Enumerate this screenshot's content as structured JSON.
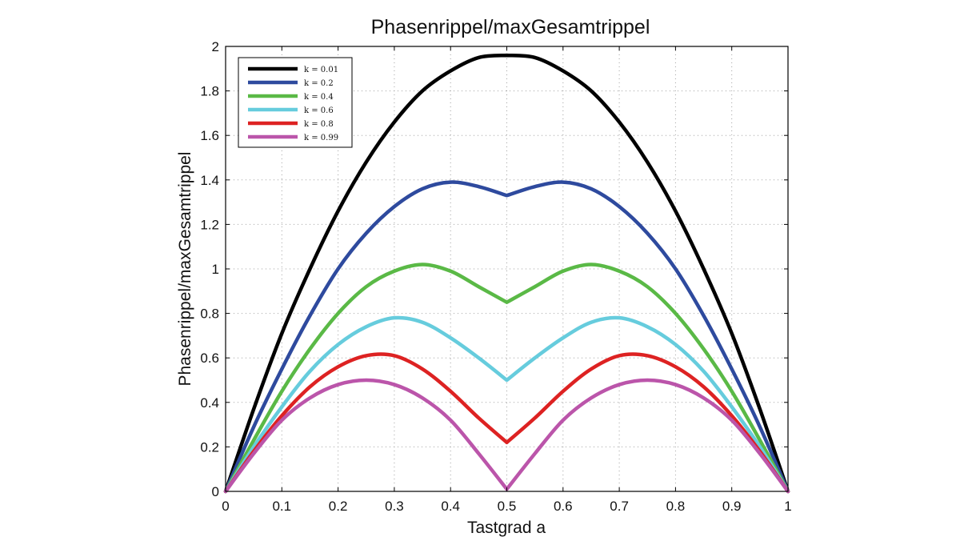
{
  "chart_data": {
    "type": "line",
    "title": "Phasenrippel/maxGesamtrippel",
    "xlabel": "Tastgrad a",
    "ylabel": "Phasenrippel/maxGesamtrippel",
    "xlim": [
      0,
      1
    ],
    "ylim": [
      0,
      2
    ],
    "xticks": [
      "0",
      "0.1",
      "0.2",
      "0.3",
      "0.4",
      "0.5",
      "0.6",
      "0.7",
      "0.8",
      "0.9",
      "1"
    ],
    "yticks": [
      "0",
      "0.2",
      "0.4",
      "0.6",
      "0.8",
      "1",
      "1.2",
      "1.4",
      "1.6",
      "1.8",
      "2"
    ],
    "grid": true,
    "legend_position": "top-left",
    "x": [
      0,
      0.05,
      0.1,
      0.15,
      0.2,
      0.25,
      0.3,
      0.35,
      0.4,
      0.45,
      0.5,
      0.55,
      0.6,
      0.65,
      0.7,
      0.75,
      0.8,
      0.85,
      0.9,
      0.95,
      1
    ],
    "series": [
      {
        "name": "k = 0.01",
        "color": "#000000",
        "values": [
          0,
          0.37,
          0.71,
          1.0,
          1.26,
          1.48,
          1.66,
          1.8,
          1.89,
          1.95,
          1.96,
          1.95,
          1.89,
          1.8,
          1.66,
          1.48,
          1.26,
          1.0,
          0.71,
          0.37,
          0
        ]
      },
      {
        "name": "k = 0.2",
        "color": "#2e4a9e",
        "values": [
          0,
          0.29,
          0.55,
          0.79,
          1.0,
          1.16,
          1.28,
          1.36,
          1.39,
          1.37,
          1.33,
          1.37,
          1.39,
          1.36,
          1.28,
          1.16,
          1.0,
          0.79,
          0.55,
          0.29,
          0
        ]
      },
      {
        "name": "k = 0.4",
        "color": "#5ab946",
        "values": [
          0,
          0.23,
          0.45,
          0.64,
          0.8,
          0.92,
          0.99,
          1.02,
          0.99,
          0.92,
          0.85,
          0.92,
          0.99,
          1.02,
          0.99,
          0.92,
          0.8,
          0.64,
          0.45,
          0.23,
          0
        ]
      },
      {
        "name": "k = 0.6",
        "color": "#66ccdd",
        "values": [
          0,
          0.2,
          0.38,
          0.54,
          0.66,
          0.74,
          0.78,
          0.76,
          0.69,
          0.6,
          0.5,
          0.6,
          0.69,
          0.76,
          0.78,
          0.74,
          0.66,
          0.54,
          0.38,
          0.2,
          0
        ]
      },
      {
        "name": "k = 0.8",
        "color": "#dd2222",
        "values": [
          0,
          0.18,
          0.34,
          0.47,
          0.56,
          0.61,
          0.61,
          0.55,
          0.45,
          0.33,
          0.22,
          0.33,
          0.45,
          0.55,
          0.61,
          0.61,
          0.56,
          0.47,
          0.34,
          0.18,
          0
        ]
      },
      {
        "name": "k = 0.99",
        "color": "#bb55aa",
        "values": [
          0,
          0.17,
          0.32,
          0.42,
          0.48,
          0.5,
          0.48,
          0.42,
          0.32,
          0.17,
          0.01,
          0.17,
          0.32,
          0.42,
          0.48,
          0.5,
          0.48,
          0.42,
          0.32,
          0.17,
          0
        ]
      }
    ]
  }
}
